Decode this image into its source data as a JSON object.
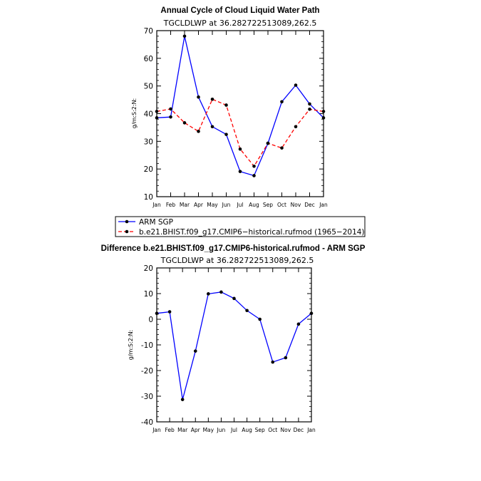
{
  "chart_data": [
    {
      "type": "line",
      "title": "Annual Cycle of Cloud Liquid Water Path",
      "subtitle": "TGCLDLWP  at  36.282722513089,262.5",
      "ylabel": "g/m:S:2:N:",
      "xlabel": "",
      "categories": [
        "Jan",
        "Feb",
        "Mar",
        "Apr",
        "May",
        "Jun",
        "Jul",
        "Aug",
        "Sep",
        "Oct",
        "Nov",
        "Dec",
        "Jan"
      ],
      "ylim": [
        10,
        70
      ],
      "yticks": [
        10,
        20,
        30,
        40,
        50,
        60,
        70
      ],
      "series": [
        {
          "name": "ARM  SGP",
          "color": "#0000ff",
          "dash": "solid",
          "values": [
            38.5,
            38.8,
            68.0,
            46.0,
            35.3,
            32.5,
            19.1,
            17.6,
            29.3,
            44.3,
            50.3,
            43.5,
            38.5
          ]
        },
        {
          "name": "b.e21.BHIST.f09_g17.CMIP6−historical.rufmod (1965−2014)",
          "color": "#ff0000",
          "dash": "dashed",
          "values": [
            40.8,
            41.7,
            36.7,
            33.6,
            45.2,
            43.1,
            27.2,
            21.0,
            29.3,
            27.6,
            35.3,
            41.6,
            40.8
          ]
        }
      ],
      "legend": {
        "location": "below"
      }
    },
    {
      "type": "line",
      "title": "Difference b.e21.BHIST.f09_g17.CMIP6-historical.rufmod - ARM SGP",
      "subtitle": "TGCLDLWP  at  36.282722513089,262.5",
      "ylabel": "g/m:S:2:N:",
      "xlabel": "",
      "categories": [
        "Jan",
        "Feb",
        "Mar",
        "Apr",
        "May",
        "Jun",
        "Jul",
        "Aug",
        "Sep",
        "Oct",
        "Nov",
        "Dec",
        "Jan"
      ],
      "ylim": [
        -40,
        20
      ],
      "yticks": [
        -40,
        -30,
        -20,
        -10,
        0,
        10,
        20
      ],
      "series": [
        {
          "name": "Difference",
          "color": "#0000ff",
          "dash": "solid",
          "values": [
            2.3,
            2.9,
            -31.3,
            -12.4,
            9.9,
            10.6,
            8.1,
            3.4,
            0.0,
            -16.7,
            -15.0,
            -1.9,
            2.3
          ]
        }
      ]
    }
  ]
}
